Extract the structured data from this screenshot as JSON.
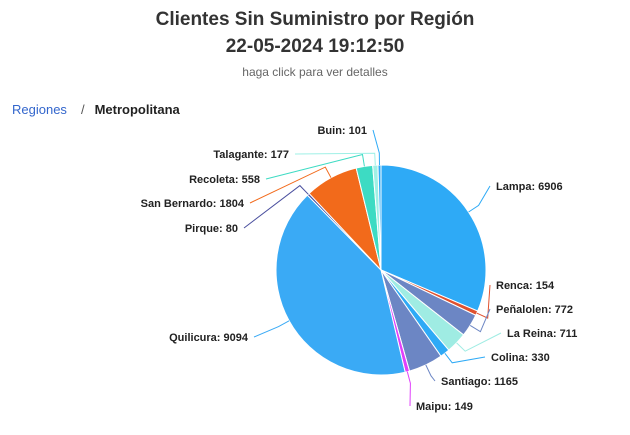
{
  "header": {
    "title": "Clientes Sin Suministro por Región",
    "datetime": "22-05-2024 19:12:50",
    "subtitle": "haga click para ver detalles"
  },
  "breadcrumb": {
    "root": "Regiones",
    "separator": "/",
    "current": "Metropolitana"
  },
  "chart_data": {
    "type": "pie",
    "title": "Clientes Sin Suministro por Región",
    "subtitle": "22-05-2024 19:12:50",
    "slices": [
      {
        "name": "Lampa",
        "value": 6906,
        "color": "#2eaaf6",
        "label": "Lampa: 6906"
      },
      {
        "name": "Renca",
        "value": 154,
        "color": "#e0512f",
        "label": "Renca: 154"
      },
      {
        "name": "Peñalolen",
        "value": 772,
        "color": "#6c86c4",
        "label": "Peñalolen: 772"
      },
      {
        "name": "La Reina",
        "value": 711,
        "color": "#9fece3",
        "label": "La Reina: 711"
      },
      {
        "name": "Colina",
        "value": 330,
        "color": "#2eaaf6",
        "label": "Colina: 330"
      },
      {
        "name": "Santiago",
        "value": 1165,
        "color": "#6c86c4",
        "label": "Santiago: 1165"
      },
      {
        "name": "Maipu",
        "value": 149,
        "color": "#e040fb",
        "label": "Maipu: 149"
      },
      {
        "name": "Quilicura",
        "value": 9094,
        "color": "#3aaaf5",
        "label": "Quilicura: 9094"
      },
      {
        "name": "Pirque",
        "value": 80,
        "color": "#4a4f9e",
        "label": "Pirque: 80"
      },
      {
        "name": "San Bernardo",
        "value": 1804,
        "color": "#f26a1b",
        "label": "San Bernardo: 1804"
      },
      {
        "name": "Recoleta",
        "value": 558,
        "color": "#3ddbc3",
        "label": "Recoleta: 558"
      },
      {
        "name": "Talagante",
        "value": 177,
        "color": "#9ff0e6",
        "label": "Talagante: 177"
      },
      {
        "name": "Buin",
        "value": 101,
        "color": "#2eaaf6",
        "label": "Buin: 101"
      }
    ]
  }
}
